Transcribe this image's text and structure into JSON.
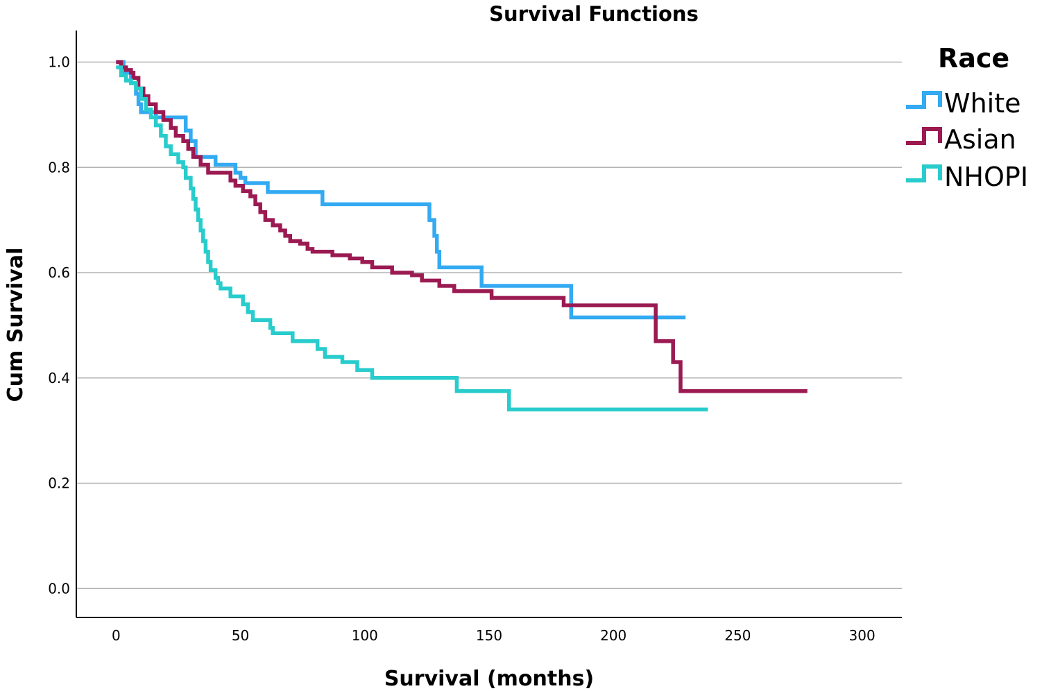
{
  "chart_data": {
    "type": "line",
    "subtype": "kaplan-meier-step",
    "title": "Survival Functions",
    "xlabel": "Survival (months)",
    "ylabel": "Cum Survival",
    "xlim": [
      -16,
      316
    ],
    "ylim": [
      -0.055,
      1.06
    ],
    "xticks": [
      0,
      50,
      100,
      150,
      200,
      250,
      300
    ],
    "yticks": [
      0.0,
      0.2,
      0.4,
      0.6,
      0.8,
      1.0
    ],
    "xtick_labels": [
      "0",
      "50",
      "100",
      "150",
      "200",
      "250",
      "300"
    ],
    "ytick_labels": [
      "0.0",
      "0.2",
      "0.4",
      "0.6",
      "0.8",
      "1.0"
    ],
    "grid": "horizontal",
    "legend": {
      "title": "Race",
      "position": "right"
    },
    "series": [
      {
        "name": "White",
        "color": "#33aaf2",
        "points": [
          [
            0,
            1.0
          ],
          [
            3,
            0.98
          ],
          [
            6,
            0.96
          ],
          [
            8,
            0.94
          ],
          [
            9,
            0.92
          ],
          [
            10,
            0.905
          ],
          [
            16,
            0.895
          ],
          [
            26,
            0.895
          ],
          [
            28,
            0.87
          ],
          [
            30,
            0.85
          ],
          [
            32,
            0.82
          ],
          [
            39,
            0.82
          ],
          [
            40,
            0.805
          ],
          [
            47,
            0.805
          ],
          [
            48,
            0.79
          ],
          [
            50,
            0.78
          ],
          [
            52,
            0.77
          ],
          [
            60,
            0.77
          ],
          [
            61,
            0.753
          ],
          [
            82,
            0.753
          ],
          [
            83,
            0.73
          ],
          [
            124,
            0.73
          ],
          [
            126,
            0.7
          ],
          [
            128,
            0.67
          ],
          [
            129,
            0.64
          ],
          [
            130,
            0.61
          ],
          [
            146,
            0.61
          ],
          [
            147,
            0.575
          ],
          [
            182,
            0.575
          ],
          [
            183,
            0.515
          ],
          [
            229,
            0.515
          ]
        ]
      },
      {
        "name": "Asian",
        "color": "#9b1a52",
        "points": [
          [
            0,
            1.0
          ],
          [
            2,
            0.99
          ],
          [
            4,
            0.985
          ],
          [
            6,
            0.98
          ],
          [
            7,
            0.97
          ],
          [
            9,
            0.95
          ],
          [
            11,
            0.935
          ],
          [
            13,
            0.92
          ],
          [
            16,
            0.905
          ],
          [
            19,
            0.89
          ],
          [
            22,
            0.875
          ],
          [
            24,
            0.86
          ],
          [
            27,
            0.85
          ],
          [
            29,
            0.835
          ],
          [
            31,
            0.82
          ],
          [
            34,
            0.805
          ],
          [
            37,
            0.79
          ],
          [
            44,
            0.79
          ],
          [
            46,
            0.775
          ],
          [
            48,
            0.765
          ],
          [
            51,
            0.755
          ],
          [
            54,
            0.745
          ],
          [
            56,
            0.73
          ],
          [
            58,
            0.715
          ],
          [
            60,
            0.7
          ],
          [
            63,
            0.69
          ],
          [
            66,
            0.68
          ],
          [
            68,
            0.67
          ],
          [
            70,
            0.66
          ],
          [
            74,
            0.655
          ],
          [
            77,
            0.645
          ],
          [
            79,
            0.64
          ],
          [
            86,
            0.64
          ],
          [
            87,
            0.633
          ],
          [
            93,
            0.633
          ],
          [
            94,
            0.627
          ],
          [
            98,
            0.627
          ],
          [
            99,
            0.62
          ],
          [
            102,
            0.62
          ],
          [
            103,
            0.61
          ],
          [
            110,
            0.61
          ],
          [
            111,
            0.6
          ],
          [
            118,
            0.6
          ],
          [
            119,
            0.595
          ],
          [
            122,
            0.595
          ],
          [
            123,
            0.585
          ],
          [
            129,
            0.585
          ],
          [
            130,
            0.575
          ],
          [
            135,
            0.575
          ],
          [
            136,
            0.565
          ],
          [
            150,
            0.565
          ],
          [
            151,
            0.552
          ],
          [
            179,
            0.552
          ],
          [
            180,
            0.538
          ],
          [
            216,
            0.538
          ],
          [
            217,
            0.47
          ],
          [
            223,
            0.47
          ],
          [
            224,
            0.43
          ],
          [
            226,
            0.43
          ],
          [
            227,
            0.375
          ],
          [
            278,
            0.375
          ]
        ]
      },
      {
        "name": "NHOPI",
        "color": "#29cccc",
        "points": [
          [
            0,
            0.99
          ],
          [
            2,
            0.975
          ],
          [
            4,
            0.965
          ],
          [
            6,
            0.96
          ],
          [
            8,
            0.95
          ],
          [
            10,
            0.93
          ],
          [
            12,
            0.91
          ],
          [
            14,
            0.895
          ],
          [
            16,
            0.88
          ],
          [
            18,
            0.86
          ],
          [
            20,
            0.84
          ],
          [
            22,
            0.825
          ],
          [
            25,
            0.81
          ],
          [
            27,
            0.8
          ],
          [
            28,
            0.78
          ],
          [
            30,
            0.76
          ],
          [
            31,
            0.74
          ],
          [
            32,
            0.72
          ],
          [
            33,
            0.7
          ],
          [
            34,
            0.68
          ],
          [
            35,
            0.66
          ],
          [
            36,
            0.64
          ],
          [
            37,
            0.62
          ],
          [
            38,
            0.605
          ],
          [
            40,
            0.59
          ],
          [
            41,
            0.58
          ],
          [
            42,
            0.57
          ],
          [
            45,
            0.57
          ],
          [
            46,
            0.555
          ],
          [
            50,
            0.555
          ],
          [
            51,
            0.54
          ],
          [
            53,
            0.525
          ],
          [
            55,
            0.51
          ],
          [
            60,
            0.51
          ],
          [
            62,
            0.495
          ],
          [
            63,
            0.485
          ],
          [
            70,
            0.485
          ],
          [
            71,
            0.47
          ],
          [
            80,
            0.47
          ],
          [
            81,
            0.455
          ],
          [
            84,
            0.44
          ],
          [
            90,
            0.44
          ],
          [
            91,
            0.43
          ],
          [
            96,
            0.43
          ],
          [
            97,
            0.415
          ],
          [
            102,
            0.415
          ],
          [
            103,
            0.4
          ],
          [
            136,
            0.4
          ],
          [
            137,
            0.375
          ],
          [
            157,
            0.375
          ],
          [
            158,
            0.34
          ],
          [
            238,
            0.34
          ]
        ]
      }
    ]
  }
}
